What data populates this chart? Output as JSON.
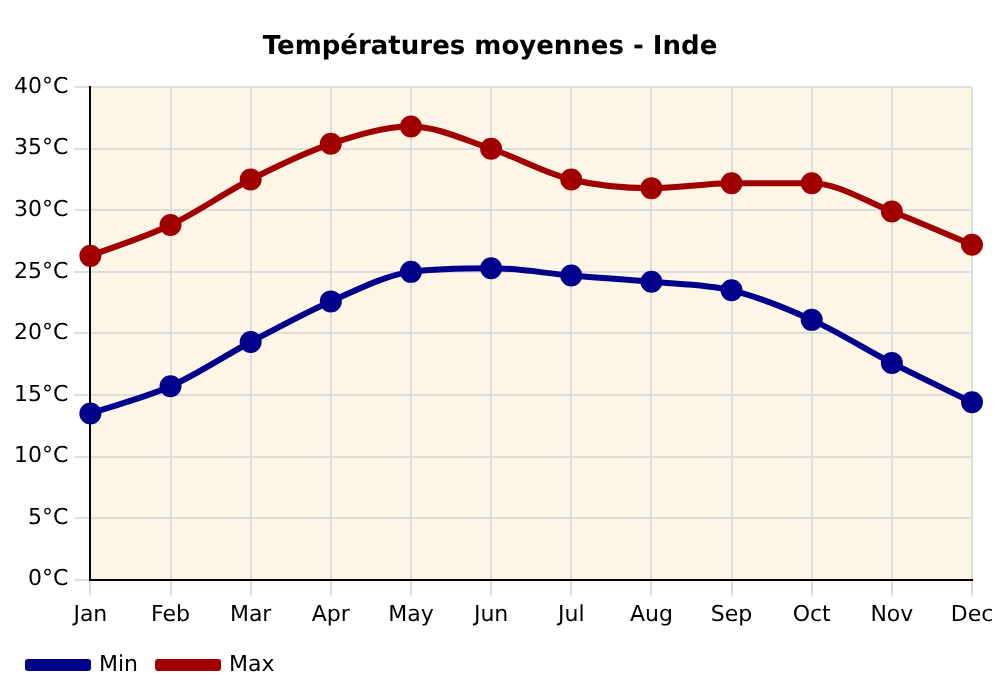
{
  "chart_data": {
    "type": "line",
    "title": "Températures moyennes - Inde",
    "categories": [
      "Jan",
      "Feb",
      "Mar",
      "Apr",
      "May",
      "Jun",
      "Jul",
      "Aug",
      "Sep",
      "Oct",
      "Nov",
      "Dec"
    ],
    "series": [
      {
        "name": "Min",
        "color": "#00008b",
        "values": [
          13.5,
          15.7,
          19.3,
          22.6,
          25.0,
          25.3,
          24.7,
          24.2,
          23.5,
          21.1,
          17.6,
          14.4
        ]
      },
      {
        "name": "Max",
        "color": "#a00000",
        "values": [
          26.3,
          28.8,
          32.5,
          35.4,
          36.8,
          35.0,
          32.5,
          31.8,
          32.2,
          32.2,
          29.9,
          27.2
        ]
      }
    ],
    "ylim": [
      0,
      40
    ],
    "yticks": [
      {
        "value": 0,
        "label": "0°C"
      },
      {
        "value": 5,
        "label": "5°C"
      },
      {
        "value": 10,
        "label": "10°C"
      },
      {
        "value": 15,
        "label": "15°C"
      },
      {
        "value": 20,
        "label": "20°C"
      },
      {
        "value": 25,
        "label": "25°C"
      },
      {
        "value": 30,
        "label": "30°C"
      },
      {
        "value": 35,
        "label": "35°C"
      },
      {
        "value": 40,
        "label": "40°C"
      }
    ],
    "grid": true,
    "legend": "bottom left",
    "marker": "circle",
    "line_style": "solid"
  }
}
